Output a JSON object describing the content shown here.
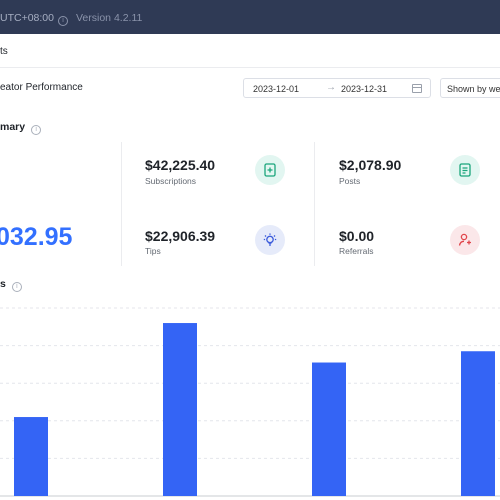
{
  "topbar": {
    "timezone": "UTC+08:00",
    "version": "Version 4.2.11"
  },
  "section": {
    "title": "ts"
  },
  "performance": {
    "title": "eator Performance",
    "date_from": "2023-12-01",
    "date_to": "2023-12-31",
    "arrow": "→",
    "shown_by": "Shown by week"
  },
  "summary": {
    "title": "mary",
    "total": "032.95",
    "stats": [
      {
        "value": "$42,225.40",
        "label": "Subscriptions",
        "icon": "subscription-icon",
        "color": "#1aa57b"
      },
      {
        "value": "$2,078.90",
        "label": "Posts",
        "icon": "document-icon",
        "color": "#1aa57b"
      },
      {
        "value": "$22,906.39",
        "label": "Tips",
        "icon": "lightbulb-icon",
        "color": "#3b5bdb"
      },
      {
        "value": "$0.00",
        "label": "Referrals",
        "icon": "user-referral-icon",
        "color": "#e0454b"
      }
    ]
  },
  "balances": {
    "title": "s"
  },
  "chart_data": {
    "type": "bar",
    "title": "",
    "bar_color": "#3464f5",
    "ylim": [
      0,
      100
    ],
    "grid": true,
    "values": [
      42,
      92,
      71,
      77
    ]
  }
}
